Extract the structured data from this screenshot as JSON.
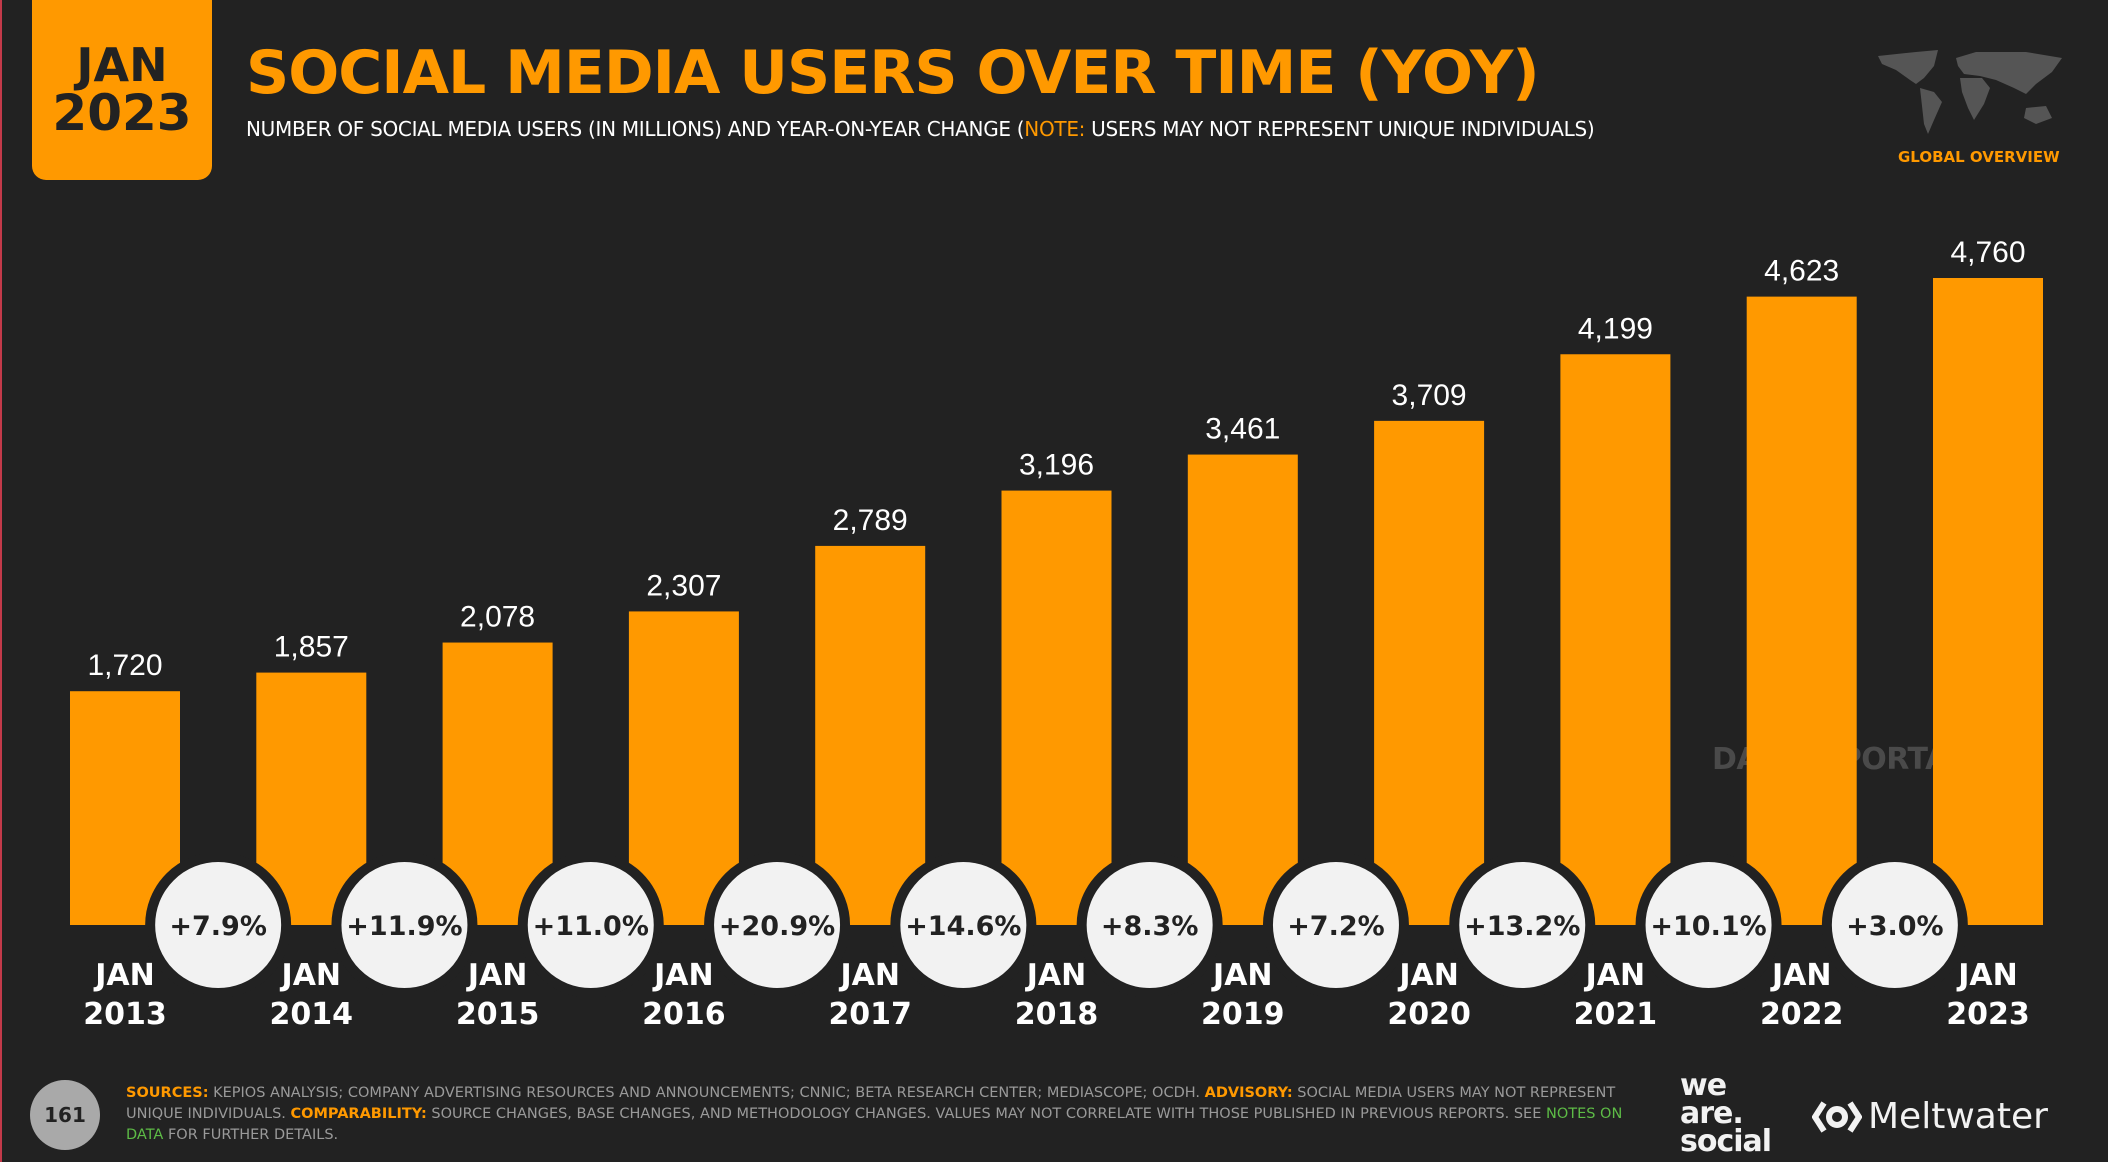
{
  "header": {
    "date_month": "JAN",
    "date_year": "2023",
    "title": "SOCIAL MEDIA USERS OVER TIME (YOY)",
    "subtitle_pre": "NUMBER OF SOCIAL MEDIA USERS (IN MILLIONS) AND YEAR-ON-YEAR CHANGE (",
    "subtitle_note": "NOTE:",
    "subtitle_post": " USERS MAY NOT REPRESENT UNIQUE INDIVIDUALS)",
    "badge": "GLOBAL OVERVIEW",
    "map_icon": "world-map-icon"
  },
  "watermark": "DATAREPORTAL",
  "colors": {
    "accent": "#ff9900",
    "background": "#222222",
    "bubble": "#f2f2f2"
  },
  "chart_data": {
    "type": "bar",
    "title": "SOCIAL MEDIA USERS OVER TIME (YOY)",
    "ylabel": "",
    "categories": [
      [
        "JAN",
        "2013"
      ],
      [
        "JAN",
        "2014"
      ],
      [
        "JAN",
        "2015"
      ],
      [
        "JAN",
        "2016"
      ],
      [
        "JAN",
        "2017"
      ],
      [
        "JAN",
        "2018"
      ],
      [
        "JAN",
        "2019"
      ],
      [
        "JAN",
        "2020"
      ],
      [
        "JAN",
        "2021"
      ],
      [
        "JAN",
        "2022"
      ],
      [
        "JAN",
        "2023"
      ]
    ],
    "values": [
      1720,
      1857,
      2078,
      2307,
      2789,
      3196,
      3461,
      3709,
      4199,
      4623,
      4760
    ],
    "value_labels": [
      "1,720",
      "1,857",
      "2,078",
      "2,307",
      "2,789",
      "3,196",
      "3,461",
      "3,709",
      "4,199",
      "4,623",
      "4,760"
    ],
    "yoy_change": [
      "+7.9%",
      "+11.9%",
      "+11.0%",
      "+20.9%",
      "+14.6%",
      "+8.3%",
      "+7.2%",
      "+13.2%",
      "+10.1%",
      "+3.0%"
    ],
    "ylim": [
      0,
      4760
    ],
    "grid": false
  },
  "footer": {
    "page_number": "161",
    "sources_label": "SOURCES:",
    "sources_text": " KEPIOS ANALYSIS; COMPANY ADVERTISING RESOURCES AND ANNOUNCEMENTS; CNNIC; BETA RESEARCH CENTER; MEDIASCOPE; OCDH. ",
    "advisory_label": "ADVISORY:",
    "advisory_text": " SOCIAL MEDIA USERS MAY NOT REPRESENT UNIQUE INDIVIDUALS. ",
    "comparability_label": "COMPARABILITY:",
    "comparability_text": " SOURCE CHANGES, BASE CHANGES, AND METHODOLOGY CHANGES. VALUES MAY NOT CORRELATE WITH THOSE PUBLISHED IN PREVIOUS REPORTS. SEE ",
    "link_text": "NOTES ON DATA",
    "tail_text": " FOR FURTHER DETAILS.",
    "logo_we_are_social": "we are. social",
    "logo_meltwater": "Meltwater"
  }
}
